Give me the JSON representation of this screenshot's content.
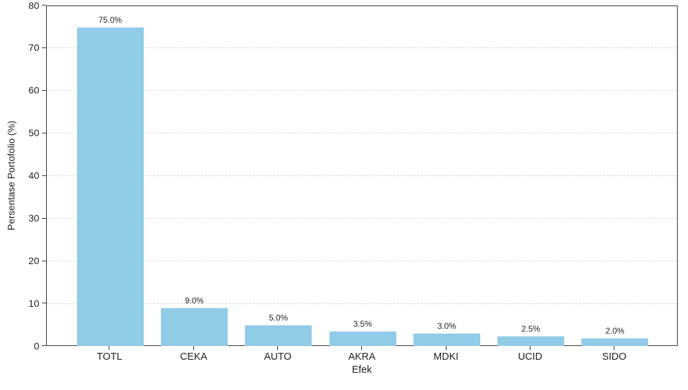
{
  "chart_data": {
    "type": "bar",
    "categories": [
      "TOTL",
      "CEKA",
      "AUTO",
      "AKRA",
      "MDKI",
      "UCID",
      "SIDO"
    ],
    "values": [
      75.0,
      9.0,
      5.0,
      3.5,
      3.0,
      2.5,
      2.0
    ],
    "bar_labels": [
      "75.0%",
      "9.0%",
      "5.0%",
      "3.5%",
      "3.0%",
      "2.5%",
      "2.0%"
    ],
    "xlabel": "Efek",
    "ylabel": "Persentase Portofolio (%)",
    "ylim": [
      0,
      80
    ],
    "yticks": [
      0,
      10,
      20,
      30,
      40,
      50,
      60,
      70,
      80
    ],
    "grid": "horizontal dashed, below bars",
    "legend": "none",
    "colors": {
      "bar": "#90CBE8",
      "grid": "#d8d8d8",
      "spine": "#333333",
      "text": "#1f1f1f",
      "background": "#ffffff"
    }
  }
}
